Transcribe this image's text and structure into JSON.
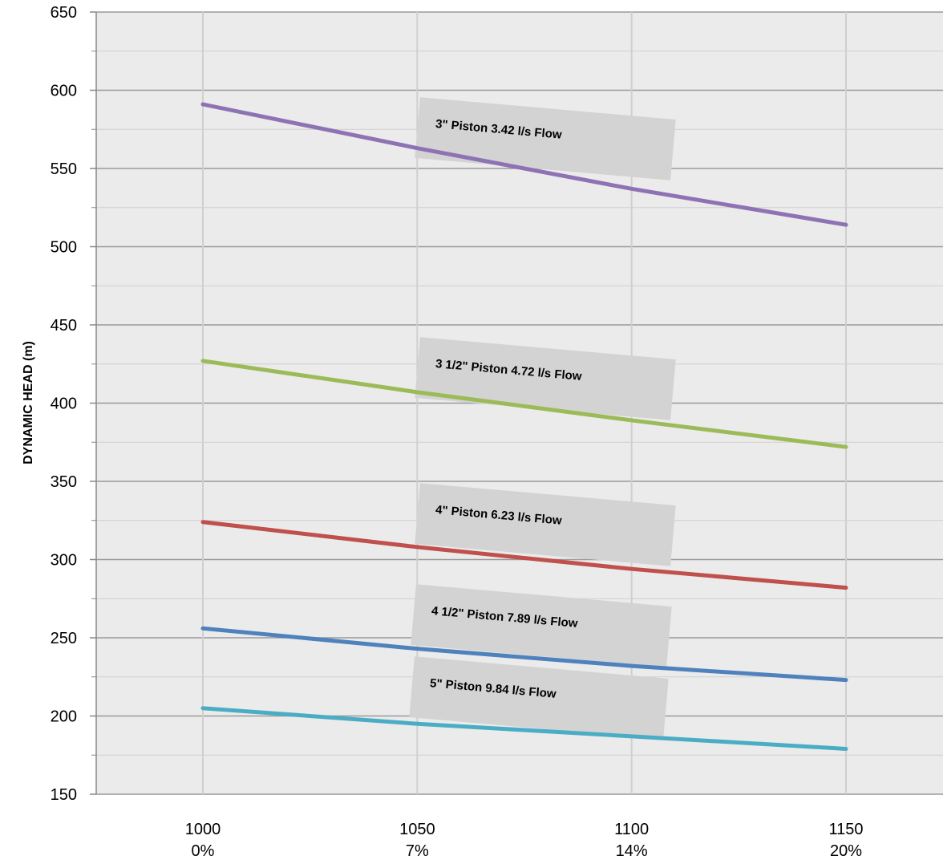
{
  "chart_data": {
    "type": "line",
    "title": "",
    "xlabel": "",
    "ylabel": "DYNAMIC HEAD (m)",
    "x": [
      1000,
      1050,
      1100,
      1150
    ],
    "x_tick_labels": [
      {
        "value": "1000",
        "percent": "0%"
      },
      {
        "value": "1050",
        "percent": "7%"
      },
      {
        "value": "1100",
        "percent": "14%"
      },
      {
        "value": "1150",
        "percent": "20%"
      }
    ],
    "xlim": [
      975,
      1175
    ],
    "ylim": [
      150,
      650
    ],
    "y_ticks": [
      150,
      200,
      250,
      300,
      350,
      400,
      450,
      500,
      550,
      600,
      650
    ],
    "grid": true,
    "series": [
      {
        "name": "3\" Piston 3.42 l/s Flow",
        "color": "#8e72b4",
        "values": [
          591,
          563,
          537,
          514
        ]
      },
      {
        "name": "3 1/2\" Piston 4.72 l/s Flow",
        "color": "#9bbb59",
        "values": [
          427,
          407,
          389,
          372
        ]
      },
      {
        "name": "4\" Piston 6.23 l/s Flow",
        "color": "#c0504d",
        "values": [
          324,
          308,
          294,
          282
        ]
      },
      {
        "name": "4 1/2\" Piston 7.89 l/s Flow",
        "color": "#4f81bd",
        "values": [
          256,
          243,
          232,
          223
        ]
      },
      {
        "name": "5\" Piston 9.84 l/s Flow",
        "color": "#4bacc6",
        "values": [
          205,
          195,
          187,
          179
        ]
      }
    ]
  }
}
